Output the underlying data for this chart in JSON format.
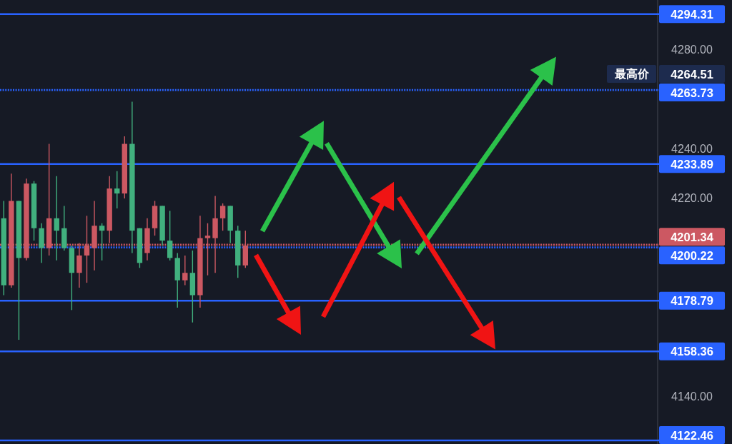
{
  "chart_data": {
    "type": "candlestick",
    "categories": [
      null,
      null,
      null,
      null,
      null,
      null,
      null,
      null,
      null,
      null,
      null,
      null,
      null,
      null,
      null,
      null,
      null,
      null,
      null,
      null,
      null,
      null,
      null,
      null,
      null,
      null,
      null,
      null,
      null,
      null,
      null,
      null,
      null,
      null,
      null,
      null,
      null,
      null,
      null,
      null,
      null,
      null,
      null,
      null,
      null,
      null,
      null,
      null,
      null,
      null,
      null,
      null,
      null,
      null,
      null,
      null,
      null,
      null,
      null,
      null,
      null,
      null,
      null,
      null,
      null,
      null,
      null,
      null,
      null,
      null,
      null,
      null,
      null,
      null,
      null,
      null,
      null,
      null,
      null,
      null,
      null,
      null,
      null,
      null,
      null,
      null,
      null
    ],
    "ohlc": [
      [
        4185,
        4219,
        4181,
        4212
      ],
      [
        4219,
        4230,
        4184,
        4185
      ],
      [
        4196,
        4219,
        4163,
        4219
      ],
      [
        4226,
        4228,
        4195,
        4196
      ],
      [
        4208,
        4227,
        4203,
        4226
      ],
      [
        4200,
        4210,
        4194,
        4208
      ],
      [
        4212,
        4242,
        4197,
        4200
      ],
      [
        4207,
        4229,
        4195,
        4212
      ],
      [
        4200,
        4217,
        4199,
        4208
      ],
      [
        4190,
        4201,
        4175,
        4200
      ],
      [
        4197,
        4202,
        4184,
        4190
      ],
      [
        4201,
        4213,
        4186,
        4197
      ],
      [
        4209,
        4219,
        4191,
        4200
      ],
      [
        4207,
        4210,
        4195,
        4209
      ],
      [
        4224,
        4229,
        4202,
        4207
      ],
      [
        4222,
        4231,
        4216,
        4224
      ],
      [
        4242,
        4245,
        4220,
        4222
      ],
      [
        4207,
        4259,
        4198,
        4242
      ],
      [
        4194,
        4208,
        4192,
        4208
      ],
      [
        4208,
        4212,
        4195,
        4198
      ],
      [
        4217,
        4219,
        4205,
        4208
      ],
      [
        4203,
        4217,
        4201,
        4217
      ],
      [
        4196,
        4215,
        4195,
        4203
      ],
      [
        4187,
        4198,
        4176,
        4196
      ],
      [
        4190,
        4197,
        4185,
        4187
      ],
      [
        4181,
        4199,
        4170,
        4190
      ],
      [
        4204,
        4213,
        4176,
        4181
      ],
      [
        4205,
        4210,
        4189,
        4204
      ],
      [
        4212,
        4221,
        4190,
        4204
      ],
      [
        4217,
        4218,
        4207,
        4212
      ],
      [
        4207,
        4217,
        4202,
        4217
      ],
      [
        4193,
        4209,
        4188,
        4207
      ],
      [
        4201,
        4207,
        4192,
        4193
      ],
      null,
      null,
      null,
      null,
      null,
      null,
      null,
      null,
      null,
      null,
      null,
      null,
      null,
      null,
      null,
      null,
      null,
      null,
      null,
      null,
      null,
      null,
      null,
      null,
      null,
      null,
      null,
      null,
      null,
      null,
      null,
      null,
      null,
      null,
      null,
      null,
      null,
      null,
      null,
      null,
      null,
      null,
      null,
      null,
      null,
      null,
      null,
      null,
      null,
      null,
      null,
      null,
      null,
      null
    ],
    "colors": [
      "#41b07e",
      "#cc5862",
      "#41b07e",
      "#cc5862",
      "#41b07e",
      "#41b07e",
      "#cc5862",
      "#41b07e",
      "#41b07e",
      "#41b07e",
      "#cc5862",
      "#cc5862",
      "#cc5862",
      "#41b07e",
      "#cc5862",
      "#41b07e",
      "#cc5862",
      "#41b07e",
      "#41b07e",
      "#cc5862",
      "#cc5862",
      "#41b07e",
      "#41b07e",
      "#41b07e",
      "#cc5862",
      "#41b07e",
      "#cc5862",
      "#cc5862",
      "#cc5862",
      "#cc5862",
      "#41b07e",
      "#41b07e",
      "#cc5862",
      null,
      null,
      null,
      null,
      null,
      null,
      null,
      null,
      null,
      null,
      null,
      null,
      null,
      null,
      null,
      null,
      null,
      null,
      null,
      null,
      null,
      null,
      null,
      null,
      null,
      null,
      null,
      null,
      null,
      null,
      null,
      null,
      null,
      null,
      null,
      null,
      null,
      null,
      null,
      null,
      null,
      null,
      null,
      null,
      null,
      null,
      null,
      null,
      null,
      null,
      null,
      null,
      null,
      null
    ],
    "ylim": [
      4121,
      4300
    ],
    "yticks": [
      {
        "value": 4140,
        "label": "4140.00"
      },
      {
        "value": 4220,
        "label": "4220.00"
      },
      {
        "value": 4240,
        "label": "4240.00"
      },
      {
        "value": 4280,
        "label": "4280.00"
      }
    ],
    "ref_lines": [
      {
        "axis": "y",
        "value": 4294.31,
        "label": "4294.31",
        "color": "#2962ff",
        "line_style": "solid"
      },
      {
        "axis": "y",
        "value": 4263.73,
        "label": "4263.73",
        "color": "#2962ff",
        "line_style": "dotted"
      },
      {
        "axis": "y",
        "value": 4233.89,
        "label": "4233.89",
        "color": "#2962ff",
        "line_style": "solid"
      },
      {
        "axis": "y",
        "value": 4201.34,
        "label": "4201.34",
        "color": "#cc5862",
        "line_style": "dotted"
      },
      {
        "axis": "y",
        "value": 4200.22,
        "label": "4200.22",
        "color": "#2962ff",
        "line_style": "dotted"
      },
      {
        "axis": "y",
        "value": 4178.79,
        "label": "4178.79",
        "color": "#2962ff",
        "line_style": "solid"
      },
      {
        "axis": "y",
        "value": 4158.36,
        "label": "4158.36",
        "color": "#2962ff",
        "line_style": "solid"
      },
      {
        "axis": "y",
        "value": 4122.46,
        "label": "4122.46",
        "color": "#2962ff",
        "line_style": "solid"
      }
    ],
    "annotations": [
      "最高价",
      "4264.51"
    ]
  }
}
